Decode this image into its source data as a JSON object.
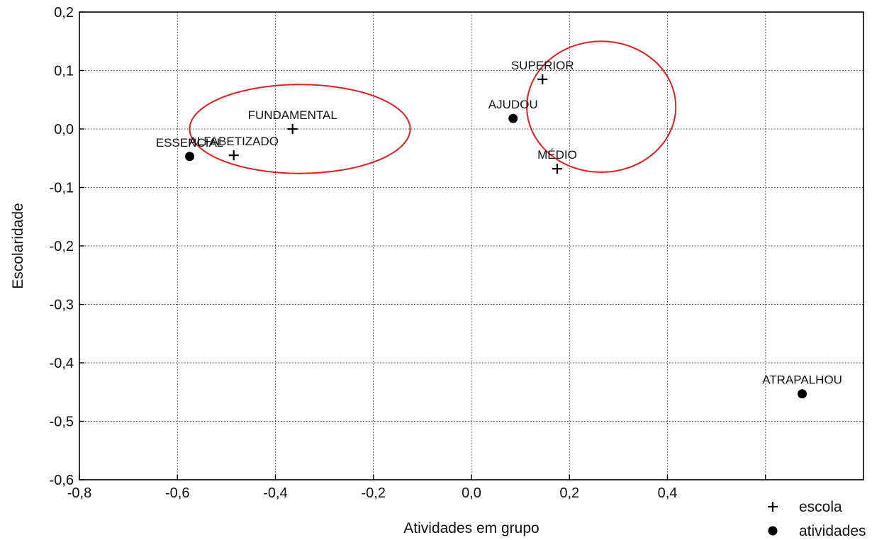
{
  "chart_data": {
    "type": "scatter",
    "xlabel": "Atividades em grupo",
    "ylabel": "Escolaridade",
    "xlim": [
      -0.8,
      0.8
    ],
    "ylim": [
      -0.6,
      0.2
    ],
    "x_ticks": [
      "-0,8",
      "-0,6",
      "-0,4",
      "-0,2",
      "0,0",
      "0,2",
      "0,4"
    ],
    "x_tick_values": [
      -0.8,
      -0.6,
      -0.4,
      -0.2,
      0.0,
      0.2,
      0.4
    ],
    "y_ticks": [
      "0,2",
      "0,1",
      "0,0",
      "-0,1",
      "-0,2",
      "-0,3",
      "-0,4",
      "-0,5",
      "-0,6"
    ],
    "y_tick_values": [
      0.2,
      0.1,
      0.0,
      -0.1,
      -0.2,
      -0.3,
      -0.4,
      -0.5,
      -0.6
    ],
    "grid": true,
    "legend_position": "bottom-right",
    "series": [
      {
        "name": "escola",
        "marker": "plus",
        "points": [
          {
            "label": "SUPERIOR",
            "x": 0.145,
            "y": 0.085
          },
          {
            "label": "FUNDAMENTAL",
            "x": -0.365,
            "y": 0.0
          },
          {
            "label": "ALFABETIZADO",
            "x": -0.485,
            "y": -0.045
          },
          {
            "label": "MÉDIO",
            "x": 0.175,
            "y": -0.068
          }
        ]
      },
      {
        "name": "atividades",
        "marker": "dot",
        "points": [
          {
            "label": "AJUDOU",
            "x": 0.085,
            "y": 0.018
          },
          {
            "label": "ESSENCIAL",
            "x": -0.575,
            "y": -0.047
          },
          {
            "label": "ATRAPALHOU",
            "x": 0.675,
            "y": -0.453
          }
        ]
      }
    ],
    "annotations": [
      {
        "shape": "ellipse",
        "color": "#e02020",
        "center": [
          -0.35,
          0.0
        ],
        "radius_x": 0.225,
        "radius_y": 0.076
      },
      {
        "shape": "ellipse",
        "color": "#e02020",
        "center": [
          0.265,
          0.038
        ],
        "radius_x": 0.152,
        "radius_y": 0.112
      }
    ]
  }
}
